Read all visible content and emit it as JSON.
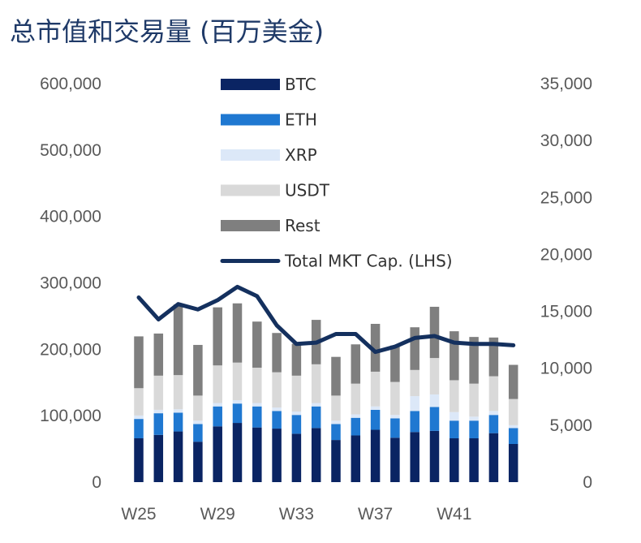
{
  "title": "总市值和交易量 (百万美金)",
  "chart_data": {
    "type": "bar",
    "stacked": true,
    "title": "总市值和交易量 (百万美金)",
    "x": [
      "W25",
      "W26",
      "W27",
      "W28",
      "W29",
      "W30",
      "W31",
      "W32",
      "W33",
      "W34",
      "W35",
      "W36",
      "W37",
      "W38",
      "W39",
      "W40",
      "W41",
      "W42",
      "W43",
      "W44"
    ],
    "x_tick_labels": [
      "W25",
      "W29",
      "W33",
      "W37",
      "W41"
    ],
    "bar_axis": "right",
    "y_left_ticks": [
      "0",
      "100,000",
      "200,000",
      "300,000",
      "400,000",
      "500,000",
      "600,000"
    ],
    "y_left_lim": [
      0,
      600000
    ],
    "y_right_ticks": [
      "0",
      "5,000",
      "10,000",
      "15,000",
      "20,000",
      "25,000",
      "30,000",
      "35,000"
    ],
    "y_right_lim": [
      0,
      35000
    ],
    "series": [
      {
        "name": "BTC",
        "color": "#0a2463",
        "values": [
          3850,
          4150,
          4450,
          3550,
          4900,
          5200,
          4800,
          4700,
          4250,
          4750,
          3700,
          4100,
          4600,
          3900,
          4400,
          4500,
          3850,
          3850,
          4300,
          3350
        ]
      },
      {
        "name": "ETH",
        "color": "#1f78d1",
        "values": [
          1700,
          1900,
          1650,
          1550,
          1750,
          1700,
          1850,
          1550,
          1650,
          1900,
          1400,
          1550,
          1750,
          1700,
          1850,
          2100,
          1550,
          1550,
          1600,
          1400
        ]
      },
      {
        "name": "XRP",
        "color": "#dce8f8",
        "values": [
          300,
          300,
          300,
          300,
          300,
          300,
          300,
          300,
          300,
          300,
          300,
          300,
          300,
          300,
          1300,
          1100,
          750,
          350,
          350,
          250
        ]
      },
      {
        "name": "USDT",
        "color": "#d9d9d9",
        "values": [
          2400,
          3000,
          3000,
          2200,
          3300,
          3300,
          3100,
          3100,
          3150,
          3400,
          2200,
          2700,
          3050,
          2900,
          2300,
          3200,
          2800,
          2900,
          3050,
          2300
        ]
      },
      {
        "name": "Rest",
        "color": "#7f7f7f",
        "values": [
          4550,
          3700,
          6200,
          4450,
          5100,
          5200,
          4050,
          3450,
          2800,
          3900,
          3400,
          3450,
          4200,
          3200,
          3750,
          4500,
          4300,
          4100,
          3400,
          3000
        ]
      }
    ],
    "line": {
      "name": "Total MKT Cap. (LHS)",
      "axis": "left",
      "color": "#14305e",
      "values": [
        278000,
        245000,
        268000,
        260000,
        274000,
        294000,
        280000,
        236000,
        208000,
        210000,
        223000,
        223000,
        196000,
        204000,
        217000,
        220000,
        210000,
        208000,
        208000,
        206000
      ]
    },
    "legend": {
      "position": "top-center",
      "entries": [
        "BTC",
        "ETH",
        "XRP",
        "USDT",
        "Rest",
        "Total MKT Cap. (LHS)"
      ]
    },
    "grid": false
  }
}
